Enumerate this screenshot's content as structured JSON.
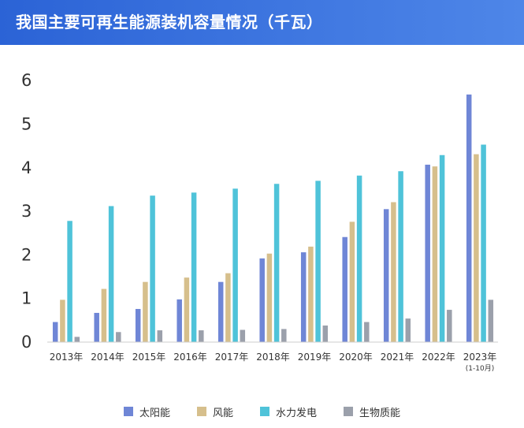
{
  "title": "我国主要可再生能源装机容量情况（千瓦）",
  "colors": {
    "header_start": "#2b63d6",
    "header_end": "#4e86e8",
    "series": [
      "#6f86d6",
      "#d6bf8c",
      "#4fc3d9",
      "#9ba0ab"
    ]
  },
  "chart_data": {
    "type": "bar",
    "categories": [
      "2013年",
      "2014年",
      "2015年",
      "2016年",
      "2017年",
      "2018年",
      "2019年",
      "2020年",
      "2021年",
      "2022年",
      "2023年"
    ],
    "category_notes": [
      "",
      "",
      "",
      "",
      "",
      "",
      "",
      "",
      "",
      "",
      "(1-10月)"
    ],
    "series": [
      {
        "name": "太阳能",
        "values": [
          0.46,
          0.67,
          0.76,
          0.98,
          1.38,
          1.92,
          2.06,
          2.41,
          3.05,
          4.07,
          5.68
        ]
      },
      {
        "name": "风能",
        "values": [
          0.97,
          1.22,
          1.38,
          1.48,
          1.58,
          2.03,
          2.19,
          2.76,
          3.21,
          4.03,
          4.31
        ]
      },
      {
        "name": "水力发电",
        "values": [
          2.78,
          3.12,
          3.36,
          3.43,
          3.52,
          3.63,
          3.7,
          3.82,
          3.92,
          4.29,
          4.53
        ]
      },
      {
        "name": "生物质能",
        "values": [
          0.12,
          0.23,
          0.27,
          0.27,
          0.28,
          0.3,
          0.38,
          0.46,
          0.54,
          0.74,
          0.97
        ]
      }
    ],
    "y_ticks": [
      "0",
      "1",
      "2",
      "3",
      "4",
      "5",
      "6"
    ],
    "ylim": [
      0,
      6.2
    ],
    "grid": false,
    "legend_position": "bottom"
  }
}
